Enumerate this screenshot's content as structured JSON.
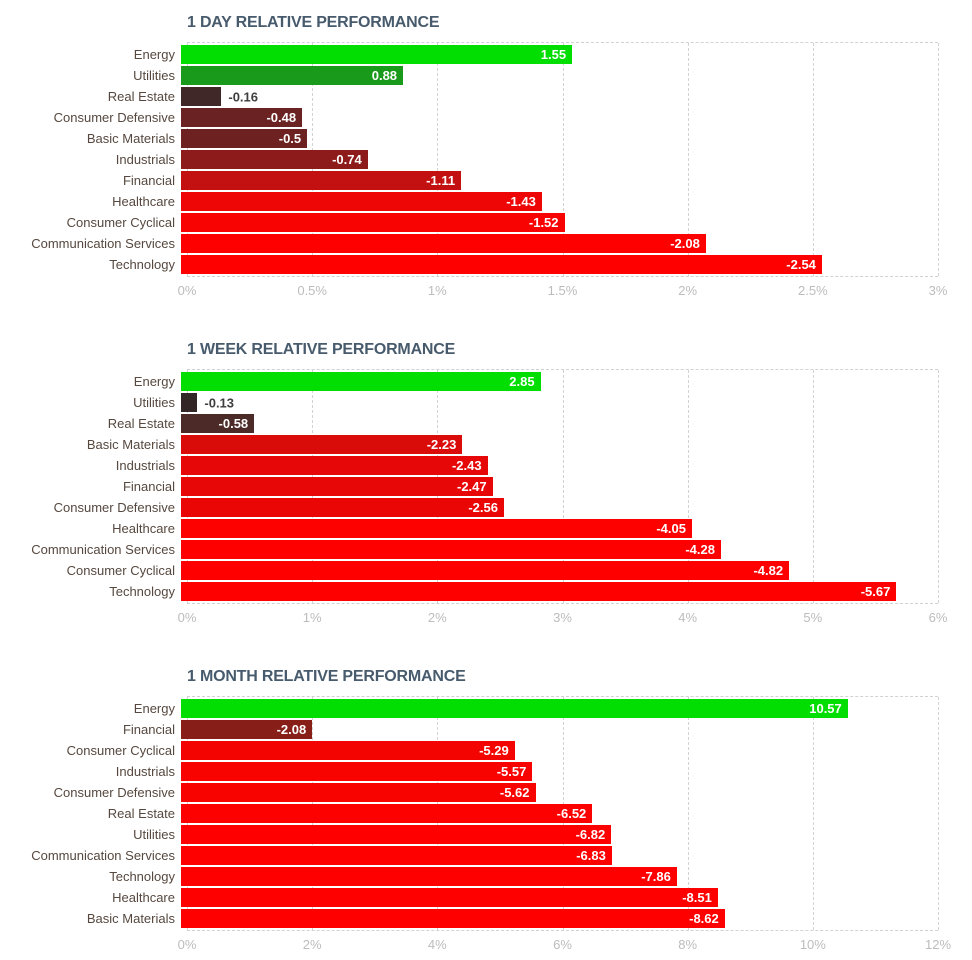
{
  "theme": {
    "background": "#ffffff",
    "title_color": "#475b6d",
    "category_label_color": "#56483f",
    "tick_label_color": "#bcbcbc",
    "grid_color": "#d2d2d2",
    "value_label_inside_color": "#ffffff",
    "value_label_outside_color": "#3e3e3e",
    "positive_extreme_color": "#02dd02",
    "negative_extreme_color": "#ff0000"
  },
  "chart_data": [
    {
      "type": "bar",
      "orientation": "horizontal",
      "title": "1 DAY RELATIVE PERFORMANCE",
      "categories": [
        "Energy",
        "Utilities",
        "Real Estate",
        "Consumer Defensive",
        "Basic Materials",
        "Industrials",
        "Financial",
        "Healthcare",
        "Consumer Cyclical",
        "Communication Services",
        "Technology"
      ],
      "values": [
        1.55,
        0.88,
        -0.16,
        -0.48,
        -0.5,
        -0.74,
        -1.11,
        -1.43,
        -1.52,
        -2.08,
        -2.54
      ],
      "value_labels": [
        "1.55",
        "0.88",
        "-0.16",
        "-0.48",
        "-0.5",
        "-0.74",
        "-1.11",
        "-1.43",
        "-1.52",
        "-2.08",
        "-2.54"
      ],
      "colors": [
        "#02dd02",
        "#1a9a1a",
        "#402829",
        "#6b2222",
        "#6d2121",
        "#8e1b1b",
        "#c31111",
        "#ee0505",
        "#f90202",
        "#fe0000",
        "#ff0000"
      ],
      "xlim": [
        0,
        3
      ],
      "xticks": [
        "0%",
        "0.5%",
        "1%",
        "1.5%",
        "2%",
        "2.5%",
        "3%"
      ],
      "bar_length_basis": "absolute value of %",
      "grid": "vertical dashed",
      "legend": "none"
    },
    {
      "type": "bar",
      "orientation": "horizontal",
      "title": "1 WEEK RELATIVE PERFORMANCE",
      "categories": [
        "Energy",
        "Utilities",
        "Real Estate",
        "Basic Materials",
        "Industrials",
        "Financial",
        "Consumer Defensive",
        "Healthcare",
        "Communication Services",
        "Consumer Cyclical",
        "Technology"
      ],
      "values": [
        2.85,
        -0.13,
        -0.58,
        -2.23,
        -2.43,
        -2.47,
        -2.56,
        -4.05,
        -4.28,
        -4.82,
        -5.67
      ],
      "value_labels": [
        "2.85",
        "-0.13",
        "-0.58",
        "-2.23",
        "-2.43",
        "-2.47",
        "-2.56",
        "-4.05",
        "-4.28",
        "-4.82",
        "-5.67"
      ],
      "colors": [
        "#02dd02",
        "#332627",
        "#4c2a27",
        "#da0c0a",
        "#e60808",
        "#e80707",
        "#eb0606",
        "#fd0100",
        "#fe0000",
        "#ff0000",
        "#ff0000"
      ],
      "xlim": [
        0,
        6
      ],
      "xticks": [
        "0%",
        "1%",
        "2%",
        "3%",
        "4%",
        "5%",
        "6%"
      ],
      "bar_length_basis": "absolute value of %",
      "grid": "vertical dashed",
      "legend": "none"
    },
    {
      "type": "bar",
      "orientation": "horizontal",
      "title": "1 MONTH RELATIVE PERFORMANCE",
      "categories": [
        "Energy",
        "Financial",
        "Consumer Cyclical",
        "Industrials",
        "Consumer Defensive",
        "Real Estate",
        "Utilities",
        "Communication Services",
        "Technology",
        "Healthcare",
        "Basic Materials"
      ],
      "values": [
        10.57,
        -2.08,
        -5.29,
        -5.57,
        -5.62,
        -6.52,
        -6.82,
        -6.83,
        -7.86,
        -8.51,
        -8.62
      ],
      "value_labels": [
        "10.57",
        "-2.08",
        "-5.29",
        "-5.57",
        "-5.62",
        "-6.52",
        "-6.82",
        "-6.83",
        "-7.86",
        "-8.51",
        "-8.62"
      ],
      "colors": [
        "#02dd02",
        "#871e18",
        "#f40400",
        "#f80300",
        "#f90300",
        "#fd0100",
        "#fe0000",
        "#fe0000",
        "#ff0000",
        "#ff0000",
        "#ff0000"
      ],
      "xlim": [
        0,
        12
      ],
      "xticks": [
        "0%",
        "2%",
        "4%",
        "6%",
        "8%",
        "10%",
        "12%"
      ],
      "bar_length_basis": "absolute value of %",
      "grid": "vertical dashed",
      "legend": "none"
    }
  ]
}
